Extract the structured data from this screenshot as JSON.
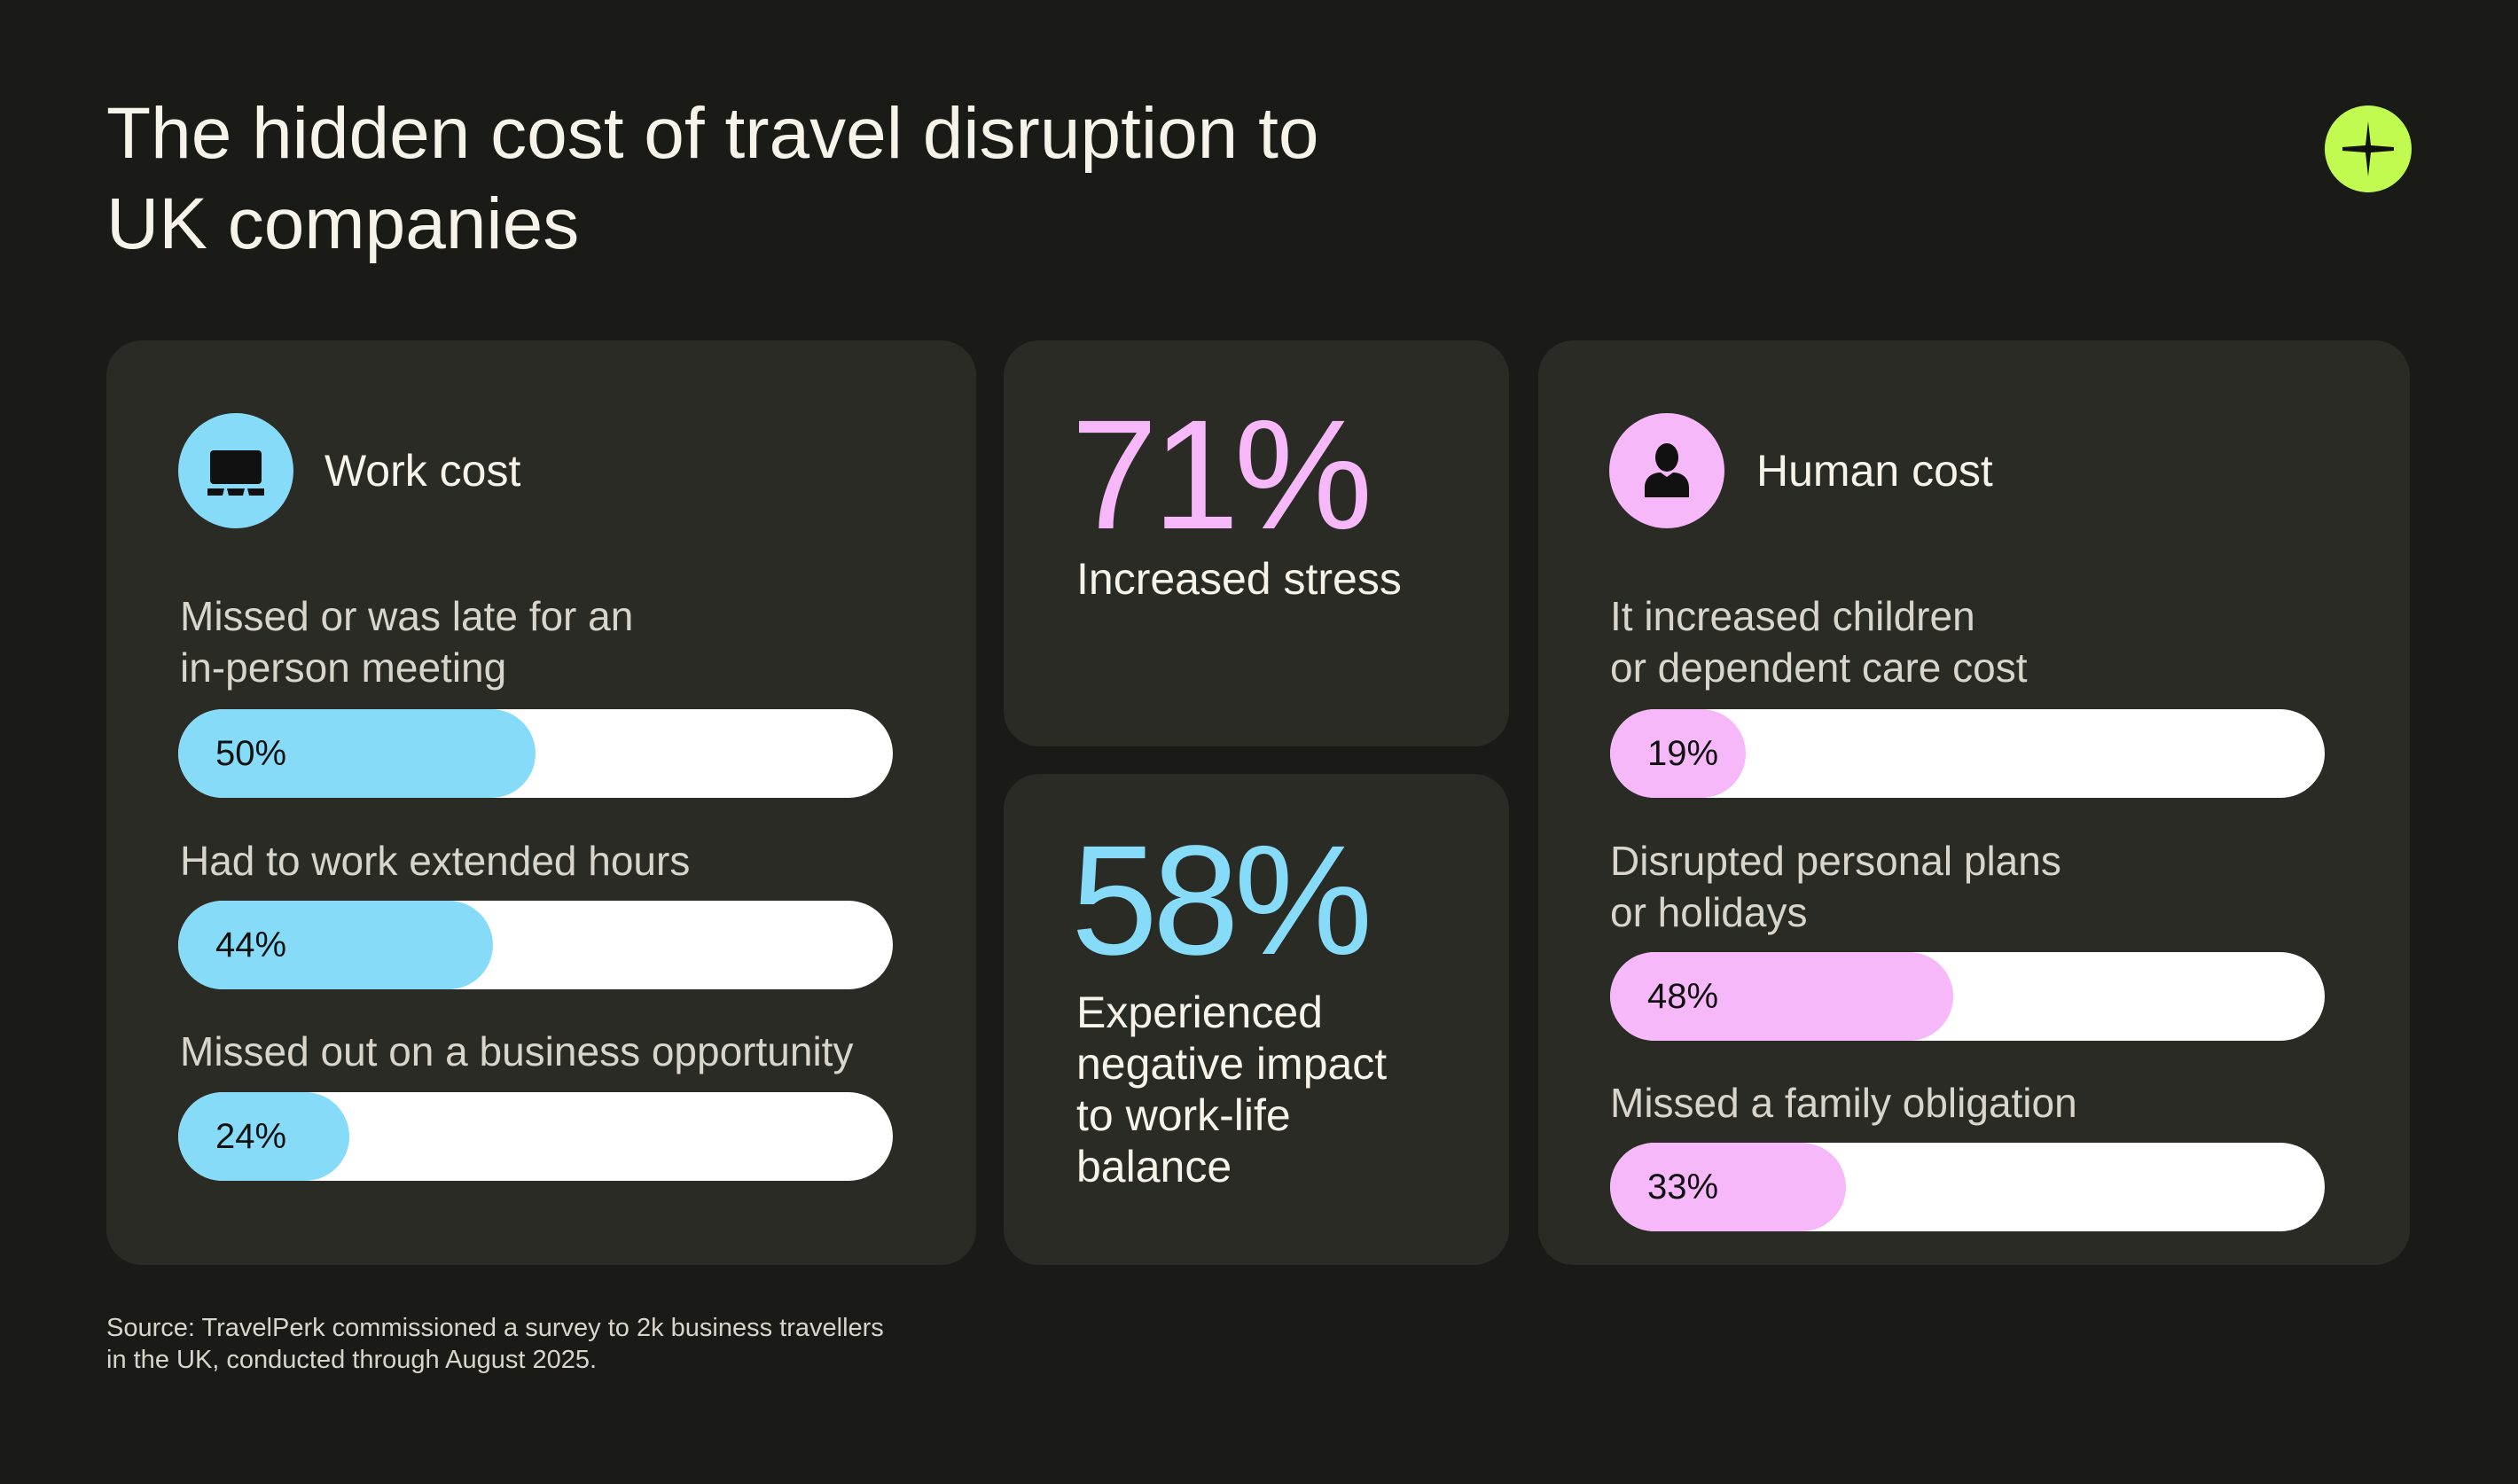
{
  "title": "The hidden cost of travel disruption to UK companies",
  "logo": {
    "icon": "plus-star-logo",
    "color": "#c2fb50"
  },
  "colors": {
    "background": "#1a1b17",
    "card": "#2b2b26",
    "work_accent": "#86dcf8",
    "human_accent": "#f6b8f8",
    "bar_track": "#ffffff"
  },
  "work_cost": {
    "title": "Work cost",
    "icon": "laptop-icon",
    "items": [
      {
        "label": "Missed or was late for an\nin-person meeting",
        "value_label": "50%",
        "value": 50
      },
      {
        "label": "Had to work extended hours",
        "value_label": "44%",
        "value": 44
      },
      {
        "label": "Missed out on a business opportunity",
        "value_label": "24%",
        "value": 24
      }
    ]
  },
  "stats": [
    {
      "value": "71%",
      "text": "Increased stress",
      "color": "#f6b8f8"
    },
    {
      "value": "58%",
      "text": "Experienced\nnegative impact\nto work-life\nbalance",
      "color": "#86dcf8"
    }
  ],
  "human_cost": {
    "title": "Human cost",
    "icon": "person-icon",
    "items": [
      {
        "label": "It increased children\nor dependent care cost",
        "value_label": "19%",
        "value": 19
      },
      {
        "label": "Disrupted personal plans\nor holidays",
        "value_label": "48%",
        "value": 48
      },
      {
        "label": "Missed a family obligation",
        "value_label": "33%",
        "value": 33
      }
    ]
  },
  "source": "Source: TravelPerk commissioned a survey to 2k business travellers\nin the UK, conducted through August 2025."
}
